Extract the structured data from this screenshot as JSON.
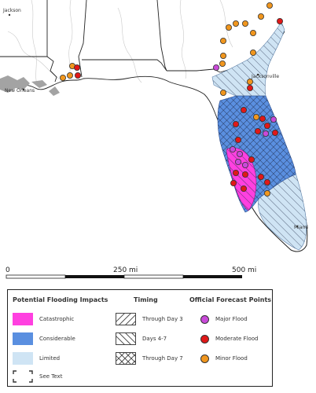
{
  "map": {
    "cities": {
      "jackson": "Jackson",
      "new_orleans": "New Orleans",
      "jacksonville": "Jacksonville",
      "miami": "Miami"
    },
    "scale": {
      "start": "0",
      "mid": "250 mi",
      "end": "500 mi"
    },
    "colors": {
      "catastrophic": "#ff40e0",
      "considerable": "#5a8fe0",
      "limited": "#cfe4f4",
      "major_flood": "#c84ad8",
      "moderate_flood": "#e01818",
      "minor_flood": "#f0961e"
    }
  },
  "legend": {
    "impacts": {
      "title": "Potential Flooding Impacts",
      "catastrophic": "Catastrophic",
      "considerable": "Considerable",
      "limited": "Limited",
      "see_text": "See Text"
    },
    "timing": {
      "title": "Timing",
      "day3": "Through Day 3",
      "day4_7": "Days 4-7",
      "day7": "Through Day 7"
    },
    "forecast_points": {
      "title": "Official Forecast Points",
      "major": "Major Flood",
      "moderate": "Moderate Flood",
      "minor": "Minor Flood"
    }
  }
}
